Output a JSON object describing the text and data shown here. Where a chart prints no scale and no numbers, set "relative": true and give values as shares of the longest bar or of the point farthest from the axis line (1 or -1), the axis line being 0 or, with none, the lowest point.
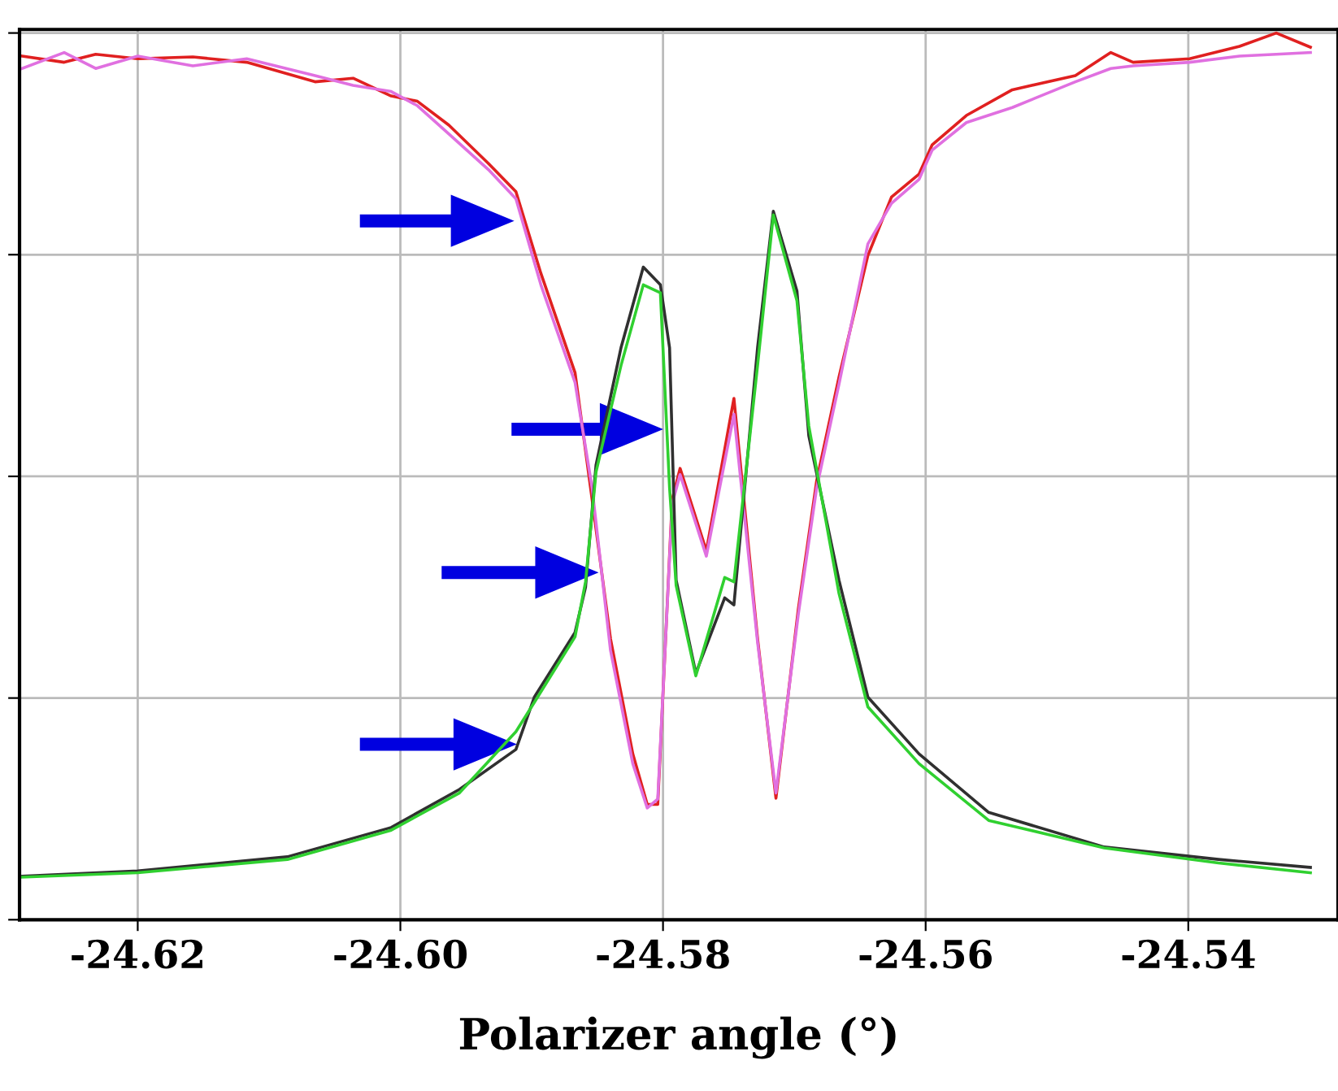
{
  "chart_data": {
    "type": "line",
    "relative": true,
    "xlabel": "Polarizer angle (°)",
    "xlim": [
      -24.629,
      -24.5286
    ],
    "xticks": [
      -24.62,
      {
        "value": -24.6,
        "label": "-24.60"
      },
      -24.58,
      -24.56,
      -24.54
    ],
    "grid": true,
    "tick_labels": "x",
    "marker": "none",
    "line_style": "solid",
    "x": [
      -24.6288,
      -24.6256,
      -24.6232,
      -24.62,
      -24.6158,
      -24.6117,
      -24.6065,
      -24.6036,
      -24.6007,
      -24.5987,
      -24.5963,
      -24.5933,
      -24.5912,
      -24.5893,
      -24.5867,
      -24.5854,
      -24.584,
      -24.5823,
      -24.5812,
      -24.5804,
      -24.5793,
      -24.5787,
      -24.5767,
      -24.5746,
      -24.5728,
      -24.5714,
      -24.5697,
      -24.5683,
      -24.5666,
      -24.5644,
      -24.5626,
      -24.5605,
      -24.5595,
      -24.5569,
      -24.5534,
      -24.5486,
      -24.5459,
      -24.5442,
      -24.5399,
      -24.5361,
      -24.5333,
      -24.5307
    ],
    "series": [
      {
        "color": "#e02020",
        "values": [
          0.974,
          0.967,
          0.976,
          0.971,
          0.973,
          0.967,
          0.945,
          0.949,
          0.929,
          0.923,
          0.896,
          0.853,
          0.821,
          0.729,
          0.617,
          0.474,
          0.317,
          0.187,
          0.13,
          0.13,
          0.474,
          0.509,
          0.416,
          0.588,
          0.317,
          0.137,
          0.35,
          0.495,
          0.612,
          0.749,
          0.815,
          0.841,
          0.874,
          0.907,
          0.936,
          0.952,
          0.978,
          0.967,
          0.971,
          0.985,
          1.0,
          0.984
        ]
      },
      {
        "color": "#e070e0",
        "values": [
          0.96,
          0.978,
          0.96,
          0.974,
          0.963,
          0.971,
          0.952,
          0.941,
          0.934,
          0.918,
          0.886,
          0.846,
          0.813,
          0.716,
          0.606,
          0.487,
          0.304,
          0.176,
          0.126,
          0.136,
          0.469,
          0.502,
          0.41,
          0.57,
          0.313,
          0.143,
          0.344,
          0.487,
          0.604,
          0.762,
          0.808,
          0.835,
          0.868,
          0.899,
          0.916,
          0.945,
          0.96,
          0.963,
          0.967,
          0.974,
          0.976,
          0.978
        ]
      },
      {
        "color": "#303030",
        "x": [
          -24.6288,
          -24.62,
          -24.6086,
          -24.6007,
          -24.5955,
          -24.5912,
          -24.5898,
          -24.5867,
          -24.5859,
          -24.5851,
          -24.5832,
          -24.5815,
          -24.5802,
          -24.5795,
          -24.579,
          -24.5775,
          -24.5753,
          -24.5746,
          -24.5728,
          -24.5716,
          -24.5698,
          -24.5689,
          -24.5666,
          -24.5644,
          -24.5605,
          -24.5552,
          -24.5464,
          -24.5377,
          -24.5307
        ],
        "values": [
          0.049,
          0.055,
          0.071,
          0.104,
          0.147,
          0.192,
          0.251,
          0.324,
          0.375,
          0.513,
          0.645,
          0.736,
          0.716,
          0.645,
          0.383,
          0.278,
          0.363,
          0.355,
          0.645,
          0.799,
          0.709,
          0.546,
          0.383,
          0.251,
          0.187,
          0.121,
          0.082,
          0.068,
          0.059
        ]
      },
      {
        "color": "#30d030",
        "x": [
          -24.6288,
          -24.62,
          -24.6086,
          -24.6007,
          -24.5955,
          -24.5912,
          -24.5898,
          -24.5867,
          -24.5859,
          -24.5851,
          -24.5832,
          -24.5815,
          -24.5802,
          -24.5795,
          -24.579,
          -24.5775,
          -24.5753,
          -24.5746,
          -24.5728,
          -24.5716,
          -24.5698,
          -24.5689,
          -24.5666,
          -24.5644,
          -24.5605,
          -24.5552,
          -24.5464,
          -24.5377,
          -24.5307
        ],
        "values": [
          0.048,
          0.053,
          0.068,
          0.101,
          0.143,
          0.212,
          0.245,
          0.319,
          0.381,
          0.505,
          0.625,
          0.716,
          0.707,
          0.487,
          0.377,
          0.275,
          0.386,
          0.381,
          0.625,
          0.795,
          0.698,
          0.557,
          0.368,
          0.24,
          0.176,
          0.112,
          0.081,
          0.064,
          0.053
        ]
      }
    ]
  }
}
